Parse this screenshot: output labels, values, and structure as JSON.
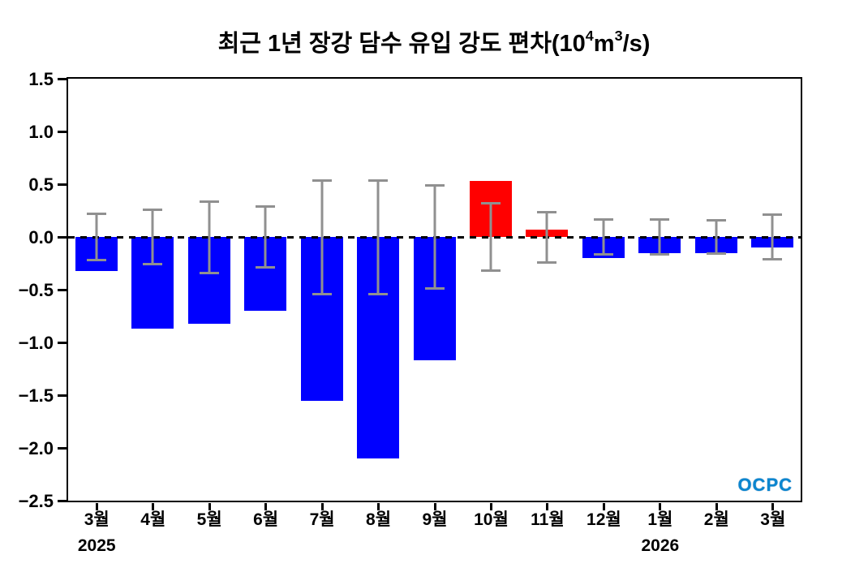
{
  "title_parts": {
    "pre": "최근 1년 장강 담수 유입 강도 편차(10",
    "sup1": "4",
    "mid": "m",
    "sup2": "3",
    "post": "/s)"
  },
  "logo": {
    "text": "OCPC"
  },
  "chart_data": {
    "type": "bar",
    "title": "최근 1년 장강 담수 유입 강도 편차(10⁴m³/s)",
    "categories": [
      "3월",
      "4월",
      "5월",
      "6월",
      "7월",
      "8월",
      "9월",
      "10월",
      "11월",
      "12월",
      "1월",
      "2월",
      "3월"
    ],
    "values": [
      -0.32,
      -0.87,
      -0.82,
      -0.7,
      -1.55,
      -2.1,
      -1.17,
      0.53,
      0.07,
      -0.2,
      -0.15,
      -0.15,
      -0.1
    ],
    "errors": [
      0.23,
      0.27,
      0.35,
      0.3,
      0.55,
      0.55,
      0.5,
      0.33,
      0.25,
      0.18,
      0.18,
      0.17,
      0.22
    ],
    "year_labels": [
      {
        "index": 0,
        "label": "2025"
      },
      {
        "index": 10,
        "label": "2026"
      }
    ],
    "ylim": [
      -2.5,
      1.5
    ],
    "yticks": [
      {
        "value": 1.5,
        "label": "1.5"
      },
      {
        "value": 1.0,
        "label": "1.0"
      },
      {
        "value": 0.5,
        "label": "0.5"
      },
      {
        "value": 0.0,
        "label": "0.0"
      },
      {
        "value": -0.5,
        "label": "−0.5"
      },
      {
        "value": -1.0,
        "label": "−1.0"
      },
      {
        "value": -1.5,
        "label": "−1.5"
      },
      {
        "value": -2.0,
        "label": "−2.0"
      },
      {
        "value": -2.5,
        "label": "−2.5"
      }
    ],
    "positive_color": "#ff0000",
    "negative_color": "#0000ff",
    "error_color": "#909090",
    "zero_line": "dashed",
    "grid": false,
    "legend": false
  }
}
